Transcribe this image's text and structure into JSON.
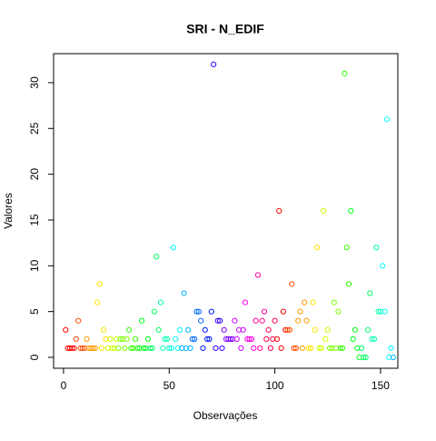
{
  "chart_data": {
    "type": "scatter",
    "title": "SRI - N_EDIF",
    "xlabel": "Observações",
    "ylabel": "Valores",
    "x": [
      1,
      2,
      3,
      4,
      5,
      6,
      7,
      8,
      9,
      10,
      11,
      12,
      13,
      14,
      15,
      16,
      17,
      18,
      19,
      20,
      21,
      22,
      23,
      24,
      25,
      26,
      27,
      28,
      29,
      30,
      31,
      32,
      33,
      34,
      35,
      36,
      37,
      38,
      39,
      40,
      41,
      42,
      43,
      44,
      45,
      46,
      47,
      48,
      49,
      50,
      51,
      52,
      53,
      54,
      55,
      56,
      57,
      58,
      59,
      60,
      61,
      62,
      63,
      64,
      65,
      66,
      67,
      68,
      69,
      70,
      71,
      72,
      73,
      74,
      75,
      76,
      77,
      78,
      79,
      80,
      81,
      82,
      83,
      84,
      85,
      86,
      87,
      88,
      89,
      90,
      91,
      92,
      93,
      94,
      95,
      96,
      97,
      98,
      99,
      100,
      101,
      102,
      103,
      104,
      105,
      106,
      107,
      108,
      109,
      110,
      111,
      112,
      113,
      114,
      115,
      116,
      117,
      118,
      119,
      120,
      121,
      122,
      123,
      124,
      125,
      126,
      127,
      128,
      129,
      130,
      131,
      132,
      133,
      134,
      135,
      136,
      137,
      138,
      139,
      140,
      141,
      142,
      143,
      144,
      145,
      146,
      147,
      148,
      149,
      150,
      151,
      152,
      153,
      154,
      155,
      156
    ],
    "values": [
      3,
      1,
      1,
      1,
      1,
      2,
      4,
      1,
      1,
      1,
      2,
      1,
      1,
      1,
      1,
      6,
      8,
      1,
      3,
      2,
      1,
      2,
      1,
      1,
      2,
      1,
      2,
      2,
      1,
      2,
      3,
      1,
      1,
      2,
      1,
      1,
      4,
      1,
      1,
      2,
      1,
      1,
      5,
      11,
      3,
      6,
      1,
      2,
      2,
      1,
      1,
      12,
      2,
      1,
      3,
      1,
      7,
      1,
      3,
      1,
      2,
      2,
      5,
      5,
      4,
      1,
      3,
      2,
      2,
      5,
      32,
      1,
      4,
      4,
      1,
      3,
      2,
      2,
      2,
      2,
      4,
      2,
      3,
      1,
      3,
      6,
      2,
      2,
      2,
      1,
      4,
      9,
      1,
      4,
      5,
      2,
      3,
      1,
      2,
      4,
      2,
      16,
      1,
      5,
      3,
      3,
      3,
      8,
      1,
      1,
      4,
      5,
      1,
      6,
      4,
      1,
      1,
      6,
      3,
      12,
      1,
      1,
      16,
      2,
      3,
      1,
      1,
      6,
      1,
      5,
      1,
      1,
      31,
      12,
      8,
      16,
      2,
      3,
      1,
      0,
      1,
      0,
      0,
      3,
      7,
      2,
      2,
      12,
      5,
      5,
      10,
      5,
      26,
      0,
      1,
      0
    ],
    "colors": [
      "#FF0000",
      "#FF0000",
      "#FF0000",
      "#FF0000",
      "#FF0000",
      "#FF4D00",
      "#FF4D00",
      "#FF4D00",
      "#FF4D00",
      "#FF4D00",
      "#FF9900",
      "#FF9900",
      "#FF9900",
      "#FF9900",
      "#FF9900",
      "#FFE500",
      "#FFE500",
      "#FFE500",
      "#FFE500",
      "#FFE500",
      "#CCFF00",
      "#CCFF00",
      "#CCFF00",
      "#CCFF00",
      "#CCFF00",
      "#80FF00",
      "#80FF00",
      "#80FF00",
      "#80FF00",
      "#80FF00",
      "#33FF00",
      "#33FF00",
      "#33FF00",
      "#33FF00",
      "#33FF00",
      "#00FF19",
      "#00FF19",
      "#00FF19",
      "#00FF19",
      "#00FF19",
      "#00FF66",
      "#00FF66",
      "#00FF66",
      "#00FF66",
      "#00FF66",
      "#00FFB2",
      "#00FFB2",
      "#00FFB2",
      "#00FFB2",
      "#00FFB2",
      "#00FFFF",
      "#00FFFF",
      "#00FFFF",
      "#00FFFF",
      "#00FFFF",
      "#00B3FF",
      "#00B3FF",
      "#00B3FF",
      "#00B3FF",
      "#00B3FF",
      "#0066FF",
      "#0066FF",
      "#0066FF",
      "#0066FF",
      "#0066FF",
      "#001AFF",
      "#001AFF",
      "#001AFF",
      "#001AFF",
      "#001AFF",
      "#3300FF",
      "#3300FF",
      "#3300FF",
      "#3300FF",
      "#3300FF",
      "#8000FF",
      "#8000FF",
      "#8000FF",
      "#8000FF",
      "#8000FF",
      "#CC00FF",
      "#CC00FF",
      "#CC00FF",
      "#CC00FF",
      "#CC00FF",
      "#FF00E6",
      "#FF00E6",
      "#FF00E6",
      "#FF00E6",
      "#FF00E6",
      "#FF0099",
      "#FF0099",
      "#FF0099",
      "#FF0099",
      "#FF0099",
      "#FF004D",
      "#FF004D",
      "#FF004D",
      "#FF004D",
      "#FF004D",
      "#FF0000",
      "#FF0000",
      "#FF0000",
      "#FF0000",
      "#FF0000",
      "#FF4D00",
      "#FF4D00",
      "#FF4D00",
      "#FF4D00",
      "#FF4D00",
      "#FF9900",
      "#FF9900",
      "#FF9900",
      "#FF9900",
      "#FF9900",
      "#FFE500",
      "#FFE500",
      "#FFE500",
      "#FFE500",
      "#FFE500",
      "#CCFF00",
      "#CCFF00",
      "#CCFF00",
      "#CCFF00",
      "#CCFF00",
      "#80FF00",
      "#80FF00",
      "#80FF00",
      "#80FF00",
      "#80FF00",
      "#33FF00",
      "#33FF00",
      "#33FF00",
      "#33FF00",
      "#33FF00",
      "#00FF19",
      "#00FF19",
      "#00FF19",
      "#00FF19",
      "#00FF19",
      "#00FF66",
      "#00FF66",
      "#00FF66",
      "#00FF66",
      "#00FF66",
      "#00FFB2",
      "#00FFB2",
      "#00FFB2",
      "#00FFB2",
      "#00FFB2",
      "#00FFFF",
      "#00FFFF",
      "#00FFFF",
      "#00FFFF",
      "#00FFFF",
      "#00B3FF"
    ],
    "xlim": [
      -4.7,
      158.2
    ],
    "ylim": [
      -1.19,
      33.17
    ],
    "xticks": [
      0,
      50,
      100,
      150
    ],
    "yticks": [
      0,
      5,
      10,
      15,
      20,
      25,
      30
    ]
  }
}
